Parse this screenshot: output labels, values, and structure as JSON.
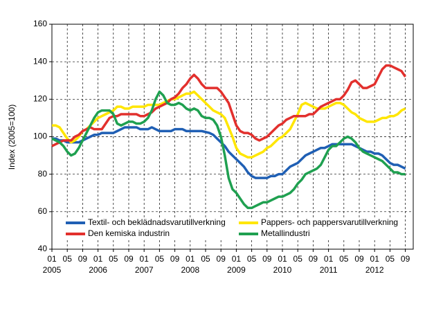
{
  "chart_data": {
    "type": "line",
    "y_label": "Index (2005=100)",
    "x": [
      "2005-01",
      "2005-02",
      "2005-03",
      "2005-04",
      "2005-05",
      "2005-06",
      "2005-07",
      "2005-08",
      "2005-09",
      "2005-10",
      "2005-11",
      "2005-12",
      "2006-01",
      "2006-02",
      "2006-03",
      "2006-04",
      "2006-05",
      "2006-06",
      "2006-07",
      "2006-08",
      "2006-09",
      "2006-10",
      "2006-11",
      "2006-12",
      "2007-01",
      "2007-02",
      "2007-03",
      "2007-04",
      "2007-05",
      "2007-06",
      "2007-07",
      "2007-08",
      "2007-09",
      "2007-10",
      "2007-11",
      "2007-12",
      "2008-01",
      "2008-02",
      "2008-03",
      "2008-04",
      "2008-05",
      "2008-06",
      "2008-07",
      "2008-08",
      "2008-09",
      "2008-10",
      "2008-11",
      "2008-12",
      "2009-01",
      "2009-02",
      "2009-03",
      "2009-04",
      "2009-05",
      "2009-06",
      "2009-07",
      "2009-08",
      "2009-09",
      "2009-10",
      "2009-11",
      "2009-12",
      "2010-01",
      "2010-02",
      "2010-03",
      "2010-04",
      "2010-05",
      "2010-06",
      "2010-07",
      "2010-08",
      "2010-09",
      "2010-10",
      "2010-11",
      "2010-12",
      "2011-01",
      "2011-02",
      "2011-03",
      "2011-04",
      "2011-05",
      "2011-06",
      "2011-07",
      "2011-08",
      "2011-09",
      "2011-10",
      "2011-11",
      "2011-12",
      "2012-01",
      "2012-02",
      "2012-03",
      "2012-04",
      "2012-05",
      "2012-06",
      "2012-07",
      "2012-08",
      "2012-09"
    ],
    "series": [
      {
        "name": "Textil- och beklädnadsvarutillverkning",
        "color": "#1f5fb4",
        "values": [
          99,
          99,
          98,
          98,
          97,
          97,
          97,
          97,
          98,
          99,
          100,
          101,
          101,
          102,
          102,
          102,
          102,
          103,
          104,
          105,
          105,
          105,
          105,
          104,
          104,
          104,
          105,
          104,
          103,
          103,
          103,
          103,
          104,
          104,
          104,
          103,
          103,
          103,
          103,
          103,
          102.5,
          102,
          101,
          99,
          97,
          95,
          92,
          90,
          88,
          86,
          84,
          81,
          79,
          78,
          78,
          78,
          78,
          79,
          79,
          80,
          80,
          82,
          84,
          85,
          86,
          88,
          90,
          91,
          92,
          93,
          94,
          94,
          95,
          96,
          96,
          96,
          96,
          96,
          96,
          95,
          94,
          93,
          92,
          92,
          91,
          91,
          90,
          88,
          86,
          85,
          85,
          84,
          83
        ]
      },
      {
        "name": "Pappers- och pappersvarutillverkning",
        "color": "#ffe600",
        "values": [
          106,
          106,
          105,
          102,
          99,
          97,
          98,
          100,
          103,
          104,
          106,
          108,
          110,
          111,
          112,
          113,
          114,
          116,
          116,
          115,
          115,
          116,
          116,
          116,
          116,
          117,
          117,
          117,
          117,
          118,
          119,
          120,
          120,
          121,
          122,
          123,
          123,
          124,
          122,
          120,
          118,
          116,
          114,
          113,
          112,
          110,
          105,
          100,
          94,
          91,
          90,
          89,
          89,
          90,
          91,
          92,
          94,
          95,
          97,
          99,
          100,
          102,
          104,
          108,
          112,
          117,
          118,
          117,
          116,
          115,
          115,
          115,
          116,
          117,
          118,
          118,
          117,
          115,
          113,
          112,
          110,
          109,
          108,
          108,
          108,
          109,
          110,
          110,
          111,
          111,
          112,
          114,
          115
        ]
      },
      {
        "name": "Den kemiska industrin",
        "color": "#e2302d",
        "values": [
          95,
          96,
          97,
          98,
          98,
          98,
          100,
          101,
          103,
          104,
          105,
          104,
          104,
          104,
          107,
          110,
          111,
          111,
          112,
          112,
          112,
          112,
          112,
          111,
          111,
          112,
          113,
          115,
          116,
          117,
          118,
          120,
          121,
          123,
          126,
          128,
          131,
          133,
          131,
          128,
          126,
          126,
          126,
          126,
          124,
          121,
          118,
          112,
          106,
          103,
          102,
          102,
          101,
          99,
          98,
          99,
          100,
          102,
          104,
          106,
          107,
          109,
          110,
          111,
          111,
          111,
          111,
          112,
          112,
          114,
          116,
          117,
          118,
          119,
          120,
          120,
          122,
          125,
          129,
          130,
          128,
          126,
          126,
          127,
          128,
          132,
          136,
          138,
          138,
          137,
          136,
          135,
          132
        ]
      },
      {
        "name": "Metallindustri",
        "color": "#1fa050",
        "values": [
          99,
          98,
          97,
          95,
          92,
          90,
          91,
          94,
          98,
          102,
          106,
          110,
          113,
          114,
          114,
          114,
          112,
          107,
          106,
          107,
          108,
          108,
          107,
          107,
          108,
          110,
          114,
          120,
          124,
          122,
          118,
          117,
          117,
          118,
          117,
          115,
          114,
          115,
          114,
          111,
          110,
          110,
          109,
          106,
          100,
          90,
          78,
          72,
          70,
          67,
          64,
          62,
          62,
          63,
          64,
          65,
          65,
          66,
          67,
          68,
          68,
          69,
          70,
          72,
          75,
          77,
          80,
          81,
          82,
          83,
          85,
          89,
          93,
          95,
          95,
          97,
          99,
          100,
          99,
          97,
          94,
          92,
          91,
          90,
          89,
          88,
          87,
          85,
          83,
          81,
          81,
          80,
          80
        ]
      }
    ],
    "ylim": [
      40,
      160
    ],
    "yticks": [
      40,
      60,
      80,
      100,
      120,
      140,
      160
    ],
    "grid": true,
    "xticks": [
      {
        "value": "2005-01",
        "label": "01"
      },
      {
        "value": "2005-05",
        "label": "05"
      },
      {
        "value": "2005-09",
        "label": "09"
      },
      {
        "value": "2006-01",
        "label": "01"
      },
      {
        "value": "2006-05",
        "label": "05"
      },
      {
        "value": "2006-09",
        "label": "09"
      },
      {
        "value": "2007-01",
        "label": "01"
      },
      {
        "value": "2007-05",
        "label": "05"
      },
      {
        "value": "2007-09",
        "label": "09"
      },
      {
        "value": "2008-01",
        "label": "01"
      },
      {
        "value": "2008-05",
        "label": "05"
      },
      {
        "value": "2008-09",
        "label": "09"
      },
      {
        "value": "2009-01",
        "label": "01"
      },
      {
        "value": "2009-05",
        "label": "05"
      },
      {
        "value": "2009-09",
        "label": "09"
      },
      {
        "value": "2010-01",
        "label": "01"
      },
      {
        "value": "2010-05",
        "label": "05"
      },
      {
        "value": "2010-09",
        "label": "09"
      },
      {
        "value": "2011-01",
        "label": "01"
      },
      {
        "value": "2011-05",
        "label": "05"
      },
      {
        "value": "2011-09",
        "label": "09"
      },
      {
        "value": "2012-01",
        "label": "01"
      },
      {
        "value": "2012-05",
        "label": "05"
      },
      {
        "value": "2012-09",
        "label": "09"
      }
    ],
    "x_years": [
      {
        "value": "2005-01",
        "label": "2005"
      },
      {
        "value": "2006-01",
        "label": "2006"
      },
      {
        "value": "2007-01",
        "label": "2007"
      },
      {
        "value": "2008-01",
        "label": "2008"
      },
      {
        "value": "2009-01",
        "label": "2009"
      },
      {
        "value": "2010-01",
        "label": "2010"
      },
      {
        "value": "2011-01",
        "label": "2011"
      },
      {
        "value": "2012-01",
        "label": "2012"
      }
    ],
    "legend": "lower left"
  }
}
